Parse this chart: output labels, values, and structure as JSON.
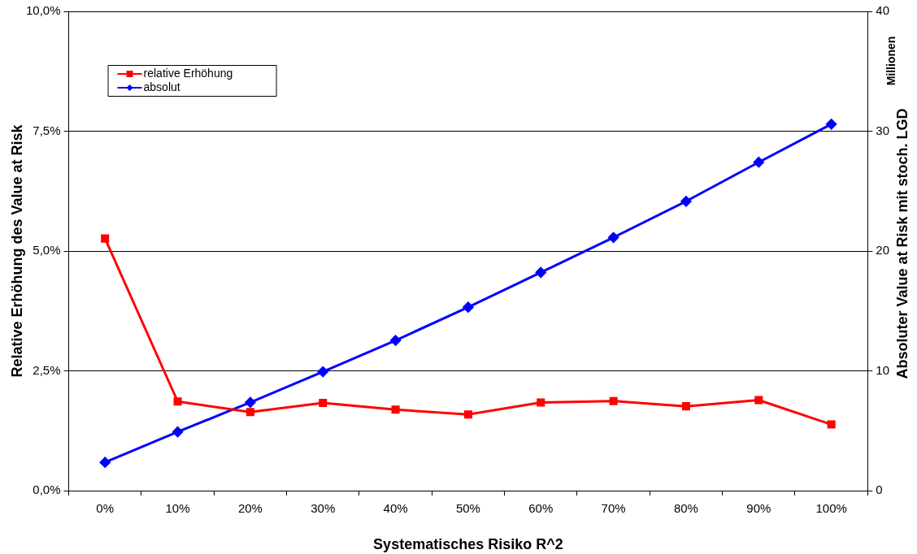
{
  "chart_data": {
    "type": "line",
    "xlabel": "Systematisches Risiko R^2",
    "ylabel": "Relative Erhöhung des Value at Risk",
    "y2label": "Absoluter Value at Risk mit stoch. LGD",
    "annotations": [
      "Millionen"
    ],
    "categories": [
      "0%",
      "10%",
      "20%",
      "30%",
      "40%",
      "50%",
      "60%",
      "70%",
      "80%",
      "90%",
      "100%"
    ],
    "series": [
      {
        "name": "relative Erhöhung",
        "color": "#ff0000",
        "marker": "square",
        "values": [
          5.26,
          1.86,
          1.64,
          1.83,
          1.69,
          1.59,
          1.84,
          1.87,
          1.76,
          1.89,
          1.38
        ]
      },
      {
        "name": "absolut",
        "color": "#0000ff",
        "marker": "diamond",
        "axis": "y2",
        "values": [
          2.36,
          4.9,
          7.37,
          9.93,
          12.54,
          15.31,
          18.21,
          21.13,
          24.15,
          27.41,
          30.59
        ]
      }
    ],
    "ylim": [
      0,
      10
    ],
    "yticks": [
      {
        "value": 0,
        "label": "0,0%"
      },
      {
        "value": 2.5,
        "label": "2,5%"
      },
      {
        "value": 5,
        "label": "5,0%"
      },
      {
        "value": 7.5,
        "label": "7,5%"
      },
      {
        "value": 10,
        "label": "10,0%"
      }
    ],
    "y2lim": [
      0,
      40
    ],
    "y2ticks": [
      0,
      10,
      20,
      30,
      40
    ],
    "grid": "y",
    "legend": "top left",
    "line_style": "solid"
  }
}
